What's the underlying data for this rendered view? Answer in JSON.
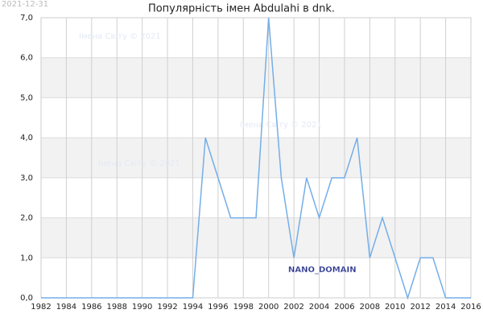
{
  "chart_data": {
    "type": "line",
    "title": "Популярність імен Abdulahi в dnk.",
    "date_label": "2021-12-31",
    "watermarks": [
      "Імена Світу © 2021",
      "Імена Світу © 2021",
      "Імена Світу © 2021"
    ],
    "domain_label": "NANO_DOMAIN",
    "x": [
      1982,
      1983,
      1984,
      1985,
      1986,
      1987,
      1988,
      1989,
      1990,
      1991,
      1992,
      1993,
      1994,
      1995,
      1996,
      1997,
      1998,
      1999,
      2000,
      2001,
      2002,
      2003,
      2004,
      2005,
      2006,
      2007,
      2008,
      2009,
      2010,
      2011,
      2012,
      2013,
      2014,
      2015,
      2016
    ],
    "series": [
      {
        "color": "#74aee8",
        "values": [
          0,
          0,
          0,
          0,
          0,
          0,
          0,
          0,
          0,
          0,
          0,
          0,
          0,
          4,
          3,
          2,
          2,
          2,
          7,
          3,
          1,
          3,
          2,
          3,
          3,
          4,
          1,
          2,
          1,
          0,
          1,
          1,
          0,
          0,
          0
        ]
      }
    ],
    "xlim": [
      1982,
      2016
    ],
    "xticks": [
      1982,
      1984,
      1986,
      1988,
      1990,
      1992,
      1994,
      1996,
      1998,
      2000,
      2002,
      2004,
      2006,
      2008,
      2010,
      2012,
      2014,
      2016
    ],
    "ylim": [
      0,
      7
    ],
    "yticks": [
      {
        "value": 0,
        "label": "0,0"
      },
      {
        "value": 1,
        "label": "1,0"
      },
      {
        "value": 2,
        "label": "2,0"
      },
      {
        "value": 3,
        "label": "3,0"
      },
      {
        "value": 4,
        "label": "4,0"
      },
      {
        "value": 5,
        "label": "5,0"
      },
      {
        "value": 6,
        "label": "6,0"
      },
      {
        "value": 7,
        "label": "7,0"
      }
    ],
    "grid": true
  }
}
